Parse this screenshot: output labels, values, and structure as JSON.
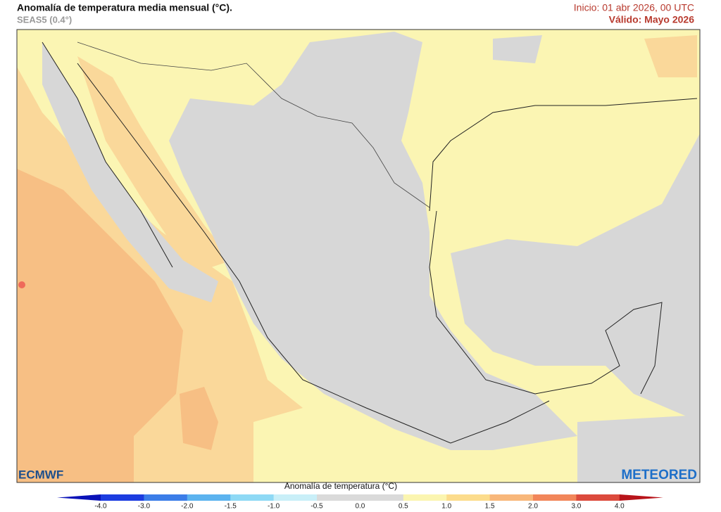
{
  "header": {
    "title": "Anomalía de temperatura media mensual (°C).",
    "subtitle": "SEAS5 (0.4°)",
    "init": "Inicio: 01 abr 2026, 00 UTC",
    "valid": "Válido: Mayo 2026"
  },
  "logos": {
    "left": "ECMWF",
    "right": "METEORED"
  },
  "colorbar": {
    "title": "Anomalía de temperatura",
    "unit": "(°C)",
    "ticks": [
      "-4.0",
      "-3.0",
      "-2.0",
      "-1.5",
      "-1.0",
      "-0.5",
      "0.0",
      "0.5",
      "1.0",
      "1.5",
      "2.0",
      "3.0",
      "4.0"
    ]
  }
}
